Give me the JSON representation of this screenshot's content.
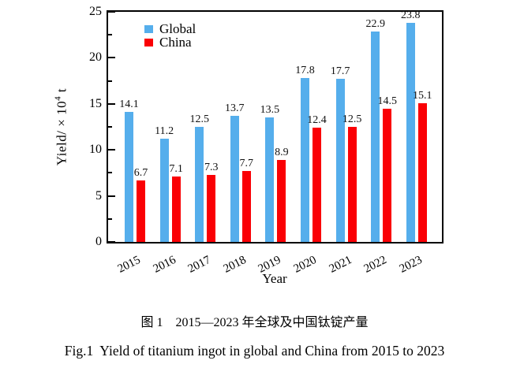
{
  "figure": {
    "caption_cn": "图 1　2015—2023 年全球及中国钛锭产量",
    "caption_en": "Fig.1  Yield of titanium ingot in global and China from 2015 to 2023"
  },
  "chart_data": {
    "type": "bar",
    "categories": [
      "2015",
      "2016",
      "2017",
      "2018",
      "2019",
      "2020",
      "2021",
      "2022",
      "2023"
    ],
    "series": [
      {
        "name": "Global",
        "color": "#55AEEC",
        "values": [
          14.1,
          11.2,
          12.5,
          13.7,
          13.5,
          17.8,
          17.7,
          22.9,
          23.8
        ]
      },
      {
        "name": "China",
        "color": "#FA0005",
        "values": [
          6.7,
          7.1,
          7.3,
          7.7,
          8.9,
          12.4,
          12.5,
          14.5,
          15.1
        ]
      }
    ],
    "xlabel": "Year",
    "ylabel": "Yield/ × 10⁴ t",
    "ylabel_parts": {
      "base": "Yield/ × 10",
      "exponent": "4",
      "unit": " t"
    },
    "ylim": [
      0,
      25
    ],
    "yticks": [
      0,
      5,
      10,
      15,
      20,
      25
    ],
    "minor_yticks": [
      2.5,
      7.5,
      12.5,
      17.5,
      22.5
    ],
    "legend": {
      "position": "top-left",
      "entries": [
        "Global",
        "China"
      ]
    },
    "grid": false,
    "axis_color": "#000000",
    "value_labels": true
  }
}
